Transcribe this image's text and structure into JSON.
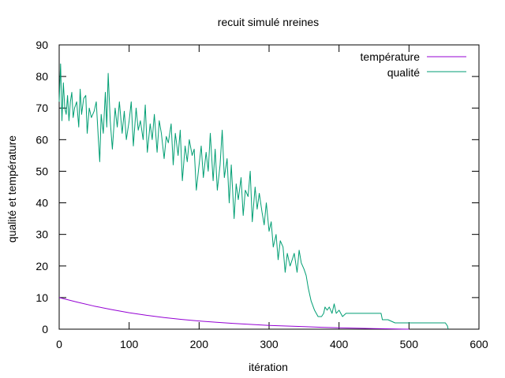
{
  "chart_data": {
    "type": "line",
    "title": "recuit simulé nreines",
    "xlabel": "itération",
    "ylabel": "qualité et température",
    "xlim": [
      0,
      600
    ],
    "ylim": [
      0,
      90
    ],
    "xticks": [
      0,
      100,
      200,
      300,
      400,
      500,
      600
    ],
    "yticks": [
      0,
      10,
      20,
      30,
      40,
      50,
      60,
      70,
      80,
      90
    ],
    "xtick_labels": [
      "0",
      "100",
      "200",
      "300",
      "400",
      "500",
      "600"
    ],
    "ytick_labels": [
      "0",
      "10",
      "20",
      "30",
      "40",
      "50",
      "60",
      "70",
      "80",
      "90"
    ],
    "grid": false,
    "legend_position": "top-right",
    "series": [
      {
        "name": "température",
        "color": "#9400d3",
        "x": [
          0,
          25,
          50,
          75,
          100,
          125,
          150,
          175,
          200,
          225,
          250,
          275,
          300,
          325,
          350,
          375,
          400,
          425,
          450,
          475,
          500
        ],
        "y": [
          10,
          8.6,
          7.3,
          6.2,
          5.2,
          4.4,
          3.7,
          3.1,
          2.6,
          2.2,
          1.8,
          1.5,
          1.2,
          1.0,
          0.8,
          0.6,
          0.45,
          0.32,
          0.2,
          0.1,
          0.0
        ]
      },
      {
        "name": "qualité",
        "color": "#009e73",
        "x": [
          0,
          2,
          4,
          6,
          8,
          10,
          12,
          14,
          16,
          18,
          20,
          22,
          25,
          28,
          30,
          32,
          35,
          38,
          40,
          43,
          46,
          50,
          53,
          56,
          58,
          60,
          63,
          66,
          68,
          70,
          73,
          76,
          80,
          83,
          86,
          90,
          93,
          96,
          100,
          103,
          106,
          110,
          113,
          116,
          120,
          123,
          126,
          130,
          133,
          136,
          140,
          143,
          146,
          150,
          153,
          156,
          160,
          163,
          166,
          170,
          173,
          176,
          180,
          183,
          186,
          190,
          193,
          196,
          200,
          203,
          206,
          210,
          213,
          216,
          220,
          223,
          226,
          230,
          233,
          236,
          240,
          243,
          246,
          250,
          253,
          256,
          260,
          263,
          266,
          270,
          273,
          276,
          280,
          283,
          286,
          290,
          293,
          296,
          300,
          303,
          306,
          310,
          313,
          316,
          320,
          323,
          326,
          330,
          333,
          336,
          340,
          343,
          346,
          350,
          353,
          356,
          360,
          365,
          370,
          375,
          378,
          380,
          383,
          386,
          390,
          393,
          396,
          400,
          405,
          410,
          420,
          430,
          440,
          450,
          460,
          462,
          470,
          480,
          490,
          500,
          520,
          540,
          550,
          552,
          555,
          556
        ],
        "y": [
          72,
          84,
          66,
          78,
          70,
          68,
          74,
          66,
          72,
          75,
          67,
          70,
          72,
          64,
          76,
          68,
          73,
          74,
          62,
          70,
          67,
          69,
          72,
          60,
          53,
          68,
          62,
          75,
          64,
          81,
          66,
          57,
          70,
          64,
          72,
          62,
          69,
          60,
          66,
          72,
          58,
          70,
          63,
          66,
          60,
          71,
          56,
          65,
          60,
          68,
          56,
          66,
          62,
          54,
          61,
          59,
          65,
          52,
          62,
          55,
          63,
          47,
          58,
          53,
          60,
          55,
          57,
          44,
          52,
          58,
          48,
          56,
          50,
          62,
          47,
          57,
          44,
          52,
          63,
          48,
          54,
          40,
          52,
          35,
          46,
          41,
          48,
          36,
          44,
          42,
          50,
          34,
          45,
          38,
          43,
          37,
          33,
          40,
          31,
          34,
          26,
          30,
          22,
          28,
          26,
          18,
          24,
          20,
          22,
          24,
          18,
          25,
          21,
          19,
          17,
          13,
          9,
          6,
          4,
          4,
          5,
          7,
          6,
          7,
          5,
          8,
          5,
          6,
          4,
          5,
          5,
          5,
          5,
          5,
          5,
          3,
          3,
          2,
          2,
          2,
          2,
          2,
          2,
          2,
          1,
          0
        ]
      }
    ]
  }
}
